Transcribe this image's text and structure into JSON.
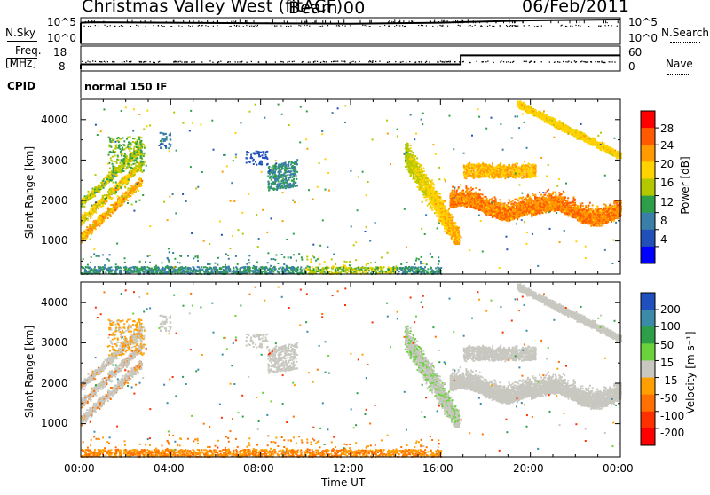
{
  "header": {
    "station": "Christmas Valley West (fitACF)",
    "beam": "Beam 00",
    "date": "06/Feb/2011"
  },
  "strips": {
    "nsky_label": "N.Sky",
    "nsky_tick_top": "10^5",
    "nsky_tick_bottom": "10^0",
    "nsearch_label": "N.Search",
    "nsearch_tick_top": "10^5",
    "nsearch_tick_bottom": "10^0",
    "freq_label": "Freq.",
    "freq_unit": "[MHz]",
    "freq_tick_top": "18",
    "freq_tick_bottom": "8",
    "nave_label": "Nave",
    "nave_tick_top": "60",
    "nave_tick_bottom": "0",
    "cpid_label": "CPID",
    "cpid_mode": "normal 150 IF"
  },
  "axes": {
    "ylabel": "Slant Range [km]",
    "xlabel": "Time UT",
    "x_ticks": [
      "00:00",
      "04:00",
      "08:00",
      "12:00",
      "16:00",
      "20:00",
      "00:00"
    ],
    "y_ticks": [
      "1000",
      "2000",
      "3000",
      "4000"
    ]
  },
  "power_colorbar": {
    "label": "Power [dB]",
    "ticks": [
      "28",
      "24",
      "20",
      "16",
      "12",
      "8",
      "4"
    ],
    "colors": [
      "#ff0000",
      "#ff5a00",
      "#ff9a00",
      "#ffd200",
      "#b4c800",
      "#2e9f48",
      "#3a7fa8",
      "#2050b8",
      "#0000ff"
    ]
  },
  "velocity_colorbar": {
    "label": "Velocity [m s⁻¹]",
    "ticks": [
      "200",
      "100",
      "50",
      "15",
      "-15",
      "-50",
      "-100",
      "-200"
    ],
    "colors": [
      "#2050c0",
      "#3a8aa8",
      "#2e9f48",
      "#6ad23a",
      "#c8c8c0",
      "#ffa000",
      "#ff7000",
      "#ff3000",
      "#ff0000"
    ]
  },
  "chart_data": [
    {
      "type": "line",
      "title": "N.Sky / N.Search",
      "series": [
        {
          "name": "N.Sky",
          "x": [
            0,
            0.5,
            4,
            8,
            12,
            16,
            20,
            24
          ],
          "values": [
            4.3,
            4.4,
            4.3,
            4.2,
            4.1,
            4.3,
            4.8,
            5
          ]
        },
        {
          "name": "N.Search",
          "x": [
            0,
            4,
            8,
            12,
            16,
            20,
            24
          ],
          "values": [
            3.6,
            3.6,
            3.5,
            3.4,
            3.6,
            3.7,
            3.8
          ]
        }
      ]
    },
    {
      "type": "line",
      "title": "Freq. / Nave",
      "series": [
        {
          "name": "Freq.",
          "x": [
            0,
            16.9,
            16.9,
            24
          ],
          "values": [
            10.3,
            10.3,
            14.5,
            14.5
          ]
        },
        {
          "name": "Nave",
          "x": [
            0,
            24
          ],
          "values": [
            22,
            22
          ]
        }
      ]
    },
    {
      "type": "heatmap",
      "title": "Power [dB]",
      "xlabel": "Time UT",
      "ylabel": "Slant Range [km]",
      "xlim": [
        0,
        24
      ],
      "ylim": [
        180,
        4500
      ],
      "features": [
        {
          "x": [
            0,
            2.7
          ],
          "range": [
            1050,
            3500
          ],
          "power": 22
        },
        {
          "x": [
            7.3,
            9.6
          ],
          "range": [
            2300,
            3200
          ],
          "power": 12
        },
        {
          "x": [
            14.4,
            16.8
          ],
          "range": [
            950,
            3400
          ],
          "power": 18
        },
        {
          "x": [
            16.4,
            24
          ],
          "range": [
            1500,
            2900
          ],
          "power": 24
        },
        {
          "x": [
            19.4,
            24
          ],
          "range": [
            3000,
            4400
          ],
          "power": 20
        },
        {
          "x": [
            0,
            16
          ],
          "range": [
            200,
            400
          ],
          "power": 8
        }
      ]
    },
    {
      "type": "heatmap",
      "title": "Velocity [m s⁻¹]",
      "xlabel": "Time UT",
      "ylabel": "Slant Range [km]",
      "xlim": [
        0,
        24
      ],
      "ylim": [
        180,
        4500
      ],
      "features": [
        {
          "x": [
            0,
            2.8
          ],
          "range": [
            1050,
            3500
          ],
          "velocity": -10
        },
        {
          "x": [
            8.3,
            9.6
          ],
          "range": [
            2300,
            3000
          ],
          "velocity": 0
        },
        {
          "x": [
            14.5,
            16.8
          ],
          "range": [
            950,
            3400
          ],
          "velocity": 20
        },
        {
          "x": [
            16.4,
            24
          ],
          "range": [
            1500,
            2900
          ],
          "velocity": 0
        },
        {
          "x": [
            19.4,
            24
          ],
          "range": [
            3000,
            4400
          ],
          "velocity": 0
        },
        {
          "x": [
            0,
            16
          ],
          "range": [
            200,
            400
          ],
          "velocity": -50
        }
      ]
    }
  ]
}
